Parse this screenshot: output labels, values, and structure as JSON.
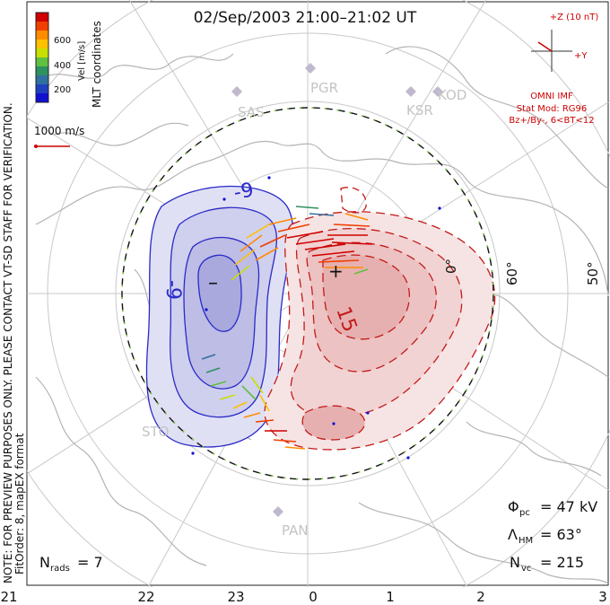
{
  "title": "02/Sep/2003 21:00–21:02 UT",
  "side_note": "NOTE: FOR PREVIEW PURPOSES ONLY. PLEASE CONTACT VT-SD STAFF FOR VERIFICATION.",
  "side_fit": "FitOrder: 8, mapEX format",
  "mlt_label": "MLT coordinates",
  "colorbar": {
    "label": "Vel [m/s]",
    "ticks": [
      "600",
      "400",
      "200"
    ],
    "colors": [
      "#d00000",
      "#f04000",
      "#ff8c00",
      "#ffc000",
      "#c8e000",
      "#60c040",
      "#2f9060",
      "#3070a0",
      "#2040c0",
      "#1010d0"
    ]
  },
  "scale_vector": {
    "label": "1000 m/s"
  },
  "imf": {
    "axis_top": "+Z (10 nT)",
    "axis_right": "+Y",
    "source": "OMNI IMF",
    "model": "Stat Mod: RG96",
    "condition": "Bz+/By-, 6<BT<12"
  },
  "stations": [
    "PGR",
    "SAS",
    "KSR",
    "KOD",
    "STO",
    "PAN"
  ],
  "lat_labels": [
    "60°",
    "50°",
    "0°"
  ],
  "contour_labels": {
    "negative": "-9",
    "negative2": "-9",
    "positive": "15",
    "min_mark": "–",
    "max_mark": "+"
  },
  "stats": {
    "phi_pc_symbol": "Φ",
    "phi_pc_sub": "pc",
    "phi_pc_value": "= 47 kV",
    "lambda_symbol": "Λ",
    "lambda_sub": "HM",
    "lambda_value": "= 63°",
    "nvc_symbol": "N",
    "nvc_sub": "vc",
    "nvc_value": "= 215",
    "nrads_symbol": "N",
    "nrads_sub": "rads",
    "nrads_value": "= 7"
  },
  "mlt_ticks": [
    "21",
    "22",
    "23",
    "0",
    "1",
    "2",
    "3"
  ]
}
